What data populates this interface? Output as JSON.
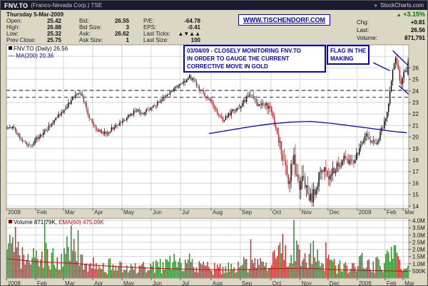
{
  "titlebar": {
    "symbol": "FNV.TO",
    "company": "(Franco-Nevada Corp.) TSE",
    "brand_dot": "●",
    "brand": "StockCharts.com"
  },
  "quote": {
    "date": "Thursday 5-Mar-2009",
    "fields": [
      {
        "label": "Open:",
        "value": "25.42"
      },
      {
        "label": "Bid:",
        "value": "26.55"
      },
      {
        "label": "P/E:",
        "value": "-64.78"
      },
      {
        "label": "High:",
        "value": "26.88"
      },
      {
        "label": "Bid Size:",
        "value": "3"
      },
      {
        "label": "EPS:",
        "value": "-0.41"
      },
      {
        "label": "Low:",
        "value": "25.32"
      },
      {
        "label": "Ask:",
        "value": "26.62"
      },
      {
        "label": "Last Ticks:",
        "value": "▲▼▲▲"
      },
      {
        "label": "Prev Close:",
        "value": "25.75"
      },
      {
        "label": "Ask Size:",
        "value": "1"
      },
      {
        "label": "Last Size:",
        "value": "100"
      }
    ],
    "link_text": "WWW.TISCHENDORF.COM",
    "up_arrow": "▲",
    "pct_change": "+3.15%",
    "rows": [
      {
        "label": "Chg:",
        "value": "+0.81"
      },
      {
        "label": "Last:",
        "value": "26.56"
      },
      {
        "label": "Volume:",
        "value": "871,791"
      }
    ]
  },
  "legend": {
    "price": "FNV.TO (Daily) 26.56",
    "ma": "— MA(200) 20.36",
    "volume": "Volume 871.79K,",
    "ema": "EMA(60) 475.09K"
  },
  "annotations": {
    "note_line1": "03/04/09 - CLOSELY MONITORING FNV.TO",
    "note_line2": "IN ORDER TO GAUGE THE CURRENT",
    "note_line3": "CORRECTIVE MOVE IN GOLD",
    "flag_line1": "FLAG IN THE",
    "flag_line2": "MAKING"
  },
  "chart_data": {
    "type": "candlestick+volume",
    "title": "FNV.TO (Daily)",
    "symbol": "FNV.TO",
    "timeframe": "Daily, Jan 2008 - 5 Mar 2009",
    "last_close": 26.56,
    "prev_close": 25.75,
    "last_ohlc": {
      "open": 25.42,
      "high": 26.88,
      "low": 25.32,
      "close": 26.56,
      "volume_millions": 0.872
    },
    "n_candles": 289,
    "seed": 11,
    "x_months": [
      {
        "label": "2008",
        "start": 0
      },
      {
        "label": "Feb",
        "start": 21
      },
      {
        "label": "Mar",
        "start": 41
      },
      {
        "label": "Apr",
        "start": 62
      },
      {
        "label": "May",
        "start": 83
      },
      {
        "label": "Jun",
        "start": 104
      },
      {
        "label": "Jul",
        "start": 125
      },
      {
        "label": "Aug",
        "start": 147
      },
      {
        "label": "Sep",
        "start": 168
      },
      {
        "label": "Oct",
        "start": 190
      },
      {
        "label": "Nov",
        "start": 211
      },
      {
        "label": "Dec",
        "start": 231
      },
      {
        "label": "2009",
        "start": 252
      },
      {
        "label": "Feb",
        "start": 272
      },
      {
        "label": "Mar",
        "start": 285
      }
    ],
    "price_axis": {
      "ticks": [
        14,
        15,
        16,
        17,
        18,
        19,
        20,
        21,
        22,
        23,
        24,
        25,
        26
      ],
      "grid_max": 27,
      "range": [
        13.8,
        28.0
      ]
    },
    "price_anchors": [
      [
        0,
        20.8
      ],
      [
        4,
        20.9
      ],
      [
        8,
        20.2
      ],
      [
        13,
        19.5
      ],
      [
        17,
        19.3
      ],
      [
        21,
        19.9
      ],
      [
        26,
        20.3
      ],
      [
        31,
        21.0
      ],
      [
        36,
        21.8
      ],
      [
        41,
        22.3
      ],
      [
        45,
        23.0
      ],
      [
        49,
        23.7
      ],
      [
        52,
        23.9
      ],
      [
        55,
        23.2
      ],
      [
        58,
        22.0
      ],
      [
        62,
        20.9
      ],
      [
        66,
        20.5
      ],
      [
        71,
        20.4
      ],
      [
        76,
        20.8
      ],
      [
        81,
        21.2
      ],
      [
        83,
        21.4
      ],
      [
        88,
        21.9
      ],
      [
        93,
        22.3
      ],
      [
        98,
        22.1
      ],
      [
        104,
        22.6
      ],
      [
        109,
        23.1
      ],
      [
        114,
        23.6
      ],
      [
        119,
        24.1
      ],
      [
        123,
        24.4
      ],
      [
        126,
        24.7
      ],
      [
        129,
        25.0
      ],
      [
        131,
        25.2
      ],
      [
        134,
        24.8
      ],
      [
        138,
        24.2
      ],
      [
        142,
        23.7
      ],
      [
        147,
        23.0
      ],
      [
        151,
        22.2
      ],
      [
        155,
        21.5
      ],
      [
        159,
        21.9
      ],
      [
        163,
        22.4
      ],
      [
        167,
        22.7
      ],
      [
        170,
        23.0
      ],
      [
        174,
        23.7
      ],
      [
        177,
        23.3
      ],
      [
        181,
        22.6
      ],
      [
        185,
        22.9
      ],
      [
        188,
        22.5
      ],
      [
        190,
        22.2
      ],
      [
        193,
        20.8
      ],
      [
        196,
        19.2
      ],
      [
        199,
        17.6
      ],
      [
        202,
        16.3
      ],
      [
        204,
        17.2
      ],
      [
        206,
        18.0
      ],
      [
        208,
        16.6
      ],
      [
        210,
        15.6
      ],
      [
        213,
        16.5
      ],
      [
        216,
        15.1
      ],
      [
        219,
        14.7
      ],
      [
        222,
        15.6
      ],
      [
        225,
        16.9
      ],
      [
        228,
        17.2
      ],
      [
        231,
        16.7
      ],
      [
        234,
        17.0
      ],
      [
        238,
        17.6
      ],
      [
        242,
        18.1
      ],
      [
        246,
        17.7
      ],
      [
        249,
        18.0
      ],
      [
        252,
        18.7
      ],
      [
        255,
        19.6
      ],
      [
        258,
        20.3
      ],
      [
        261,
        19.8
      ],
      [
        264,
        19.3
      ],
      [
        267,
        19.9
      ],
      [
        270,
        20.9
      ],
      [
        272,
        21.6
      ],
      [
        274,
        22.8
      ],
      [
        276,
        24.8
      ],
      [
        278,
        26.6
      ],
      [
        279,
        27.0
      ],
      [
        280,
        26.4
      ],
      [
        281,
        25.6
      ],
      [
        282,
        24.7
      ],
      [
        283,
        24.35
      ],
      [
        284,
        24.9
      ],
      [
        285,
        25.4
      ],
      [
        286,
        25.9
      ],
      [
        287,
        25.75
      ],
      [
        288,
        26.56
      ]
    ],
    "volatility_anchors": [
      [
        0,
        0.35
      ],
      [
        50,
        0.4
      ],
      [
        100,
        0.35
      ],
      [
        150,
        0.4
      ],
      [
        175,
        0.5
      ],
      [
        185,
        0.55
      ],
      [
        193,
        0.9
      ],
      [
        200,
        1.4
      ],
      [
        210,
        1.3
      ],
      [
        220,
        1.1
      ],
      [
        230,
        0.9
      ],
      [
        240,
        0.7
      ],
      [
        252,
        0.6
      ],
      [
        265,
        0.55
      ],
      [
        272,
        0.5
      ],
      [
        280,
        0.65
      ],
      [
        288,
        0.5
      ]
    ],
    "ma200_anchors": [
      [
        145,
        20.3
      ],
      [
        160,
        20.6
      ],
      [
        175,
        20.9
      ],
      [
        190,
        21.15
      ],
      [
        205,
        21.3
      ],
      [
        218,
        21.35
      ],
      [
        232,
        21.2
      ],
      [
        245,
        21.0
      ],
      [
        258,
        20.8
      ],
      [
        270,
        20.6
      ],
      [
        280,
        20.45
      ],
      [
        288,
        20.36
      ]
    ],
    "resistance_levels": [
      24.05,
      23.45
    ],
    "flag_lines": [
      [
        [
          277,
          27.5
        ],
        [
          288.8,
          26.15
        ]
      ],
      [
        [
          281.5,
          24.45
        ],
        [
          288.8,
          23.7
        ]
      ]
    ],
    "pointer_line": [
      [
        263,
        26.45
      ],
      [
        275,
        25.75
      ]
    ],
    "volume_axis": {
      "range": [
        0,
        4.15
      ],
      "ticks": [
        {
          "label": "500K",
          "value": 0.5
        },
        {
          "label": "1.0M",
          "value": 1.0
        },
        {
          "label": "1.5M",
          "value": 1.5
        },
        {
          "label": "2.0M",
          "value": 2.0
        },
        {
          "label": "2.5M",
          "value": 2.5
        },
        {
          "label": "3.0M",
          "value": 3.0
        },
        {
          "label": "3.5M",
          "value": 3.5
        },
        {
          "label": "4.0M",
          "value": 4.0
        }
      ]
    },
    "volume_anchors": [
      [
        0,
        1.8
      ],
      [
        3,
        2.8
      ],
      [
        6,
        2.2
      ],
      [
        10,
        1.4
      ],
      [
        14,
        1.1
      ],
      [
        21,
        1.5
      ],
      [
        25,
        2.2
      ],
      [
        29,
        1.6
      ],
      [
        34,
        1.2
      ],
      [
        41,
        1.3
      ],
      [
        45,
        2.6
      ],
      [
        48,
        1.8
      ],
      [
        52,
        1.4
      ],
      [
        57,
        1.1
      ],
      [
        62,
        0.9
      ],
      [
        70,
        0.75
      ],
      [
        78,
        0.7
      ],
      [
        83,
        0.75
      ],
      [
        90,
        0.8
      ],
      [
        97,
        0.7
      ],
      [
        104,
        0.8
      ],
      [
        110,
        0.9
      ],
      [
        118,
        1.1
      ],
      [
        126,
        1.0
      ],
      [
        131,
        1.1
      ],
      [
        138,
        0.8
      ],
      [
        145,
        0.7
      ],
      [
        151,
        0.65
      ],
      [
        158,
        0.7
      ],
      [
        165,
        0.8
      ],
      [
        170,
        0.9
      ],
      [
        176,
        1.0
      ],
      [
        182,
        0.9
      ],
      [
        188,
        1.0
      ],
      [
        193,
        1.4
      ],
      [
        198,
        1.7
      ],
      [
        203,
        1.5
      ],
      [
        208,
        1.6
      ],
      [
        213,
        1.5
      ],
      [
        218,
        1.8
      ],
      [
        223,
        1.3
      ],
      [
        228,
        1.1
      ],
      [
        231,
        1.0
      ],
      [
        238,
        0.85
      ],
      [
        245,
        0.8
      ],
      [
        252,
        1.0
      ],
      [
        258,
        1.2
      ],
      [
        264,
        0.9
      ],
      [
        270,
        1.0
      ],
      [
        274,
        1.3
      ],
      [
        278,
        1.5
      ],
      [
        282,
        1.2
      ],
      [
        285,
        1.0
      ],
      [
        288,
        0.87
      ]
    ],
    "ema_anchors": [
      [
        0,
        1.35
      ],
      [
        20,
        1.15
      ],
      [
        45,
        1.05
      ],
      [
        70,
        0.85
      ],
      [
        100,
        0.7
      ],
      [
        130,
        0.62
      ],
      [
        160,
        0.58
      ],
      [
        190,
        0.66
      ],
      [
        215,
        0.68
      ],
      [
        235,
        0.6
      ],
      [
        255,
        0.55
      ],
      [
        275,
        0.5
      ],
      [
        288,
        0.475
      ]
    ],
    "colors": {
      "up": "#000000",
      "down": "#b22222",
      "vol_up": "#2e8b2e",
      "vol_down": "#c03434",
      "ma200": "#0000cc",
      "ema": "#dd0000",
      "resistance": "#222266",
      "annotation": "#0000dd",
      "grid": "#d4d4d4",
      "plot_border": "#999999",
      "page_bg": "#dbd7c3"
    }
  }
}
